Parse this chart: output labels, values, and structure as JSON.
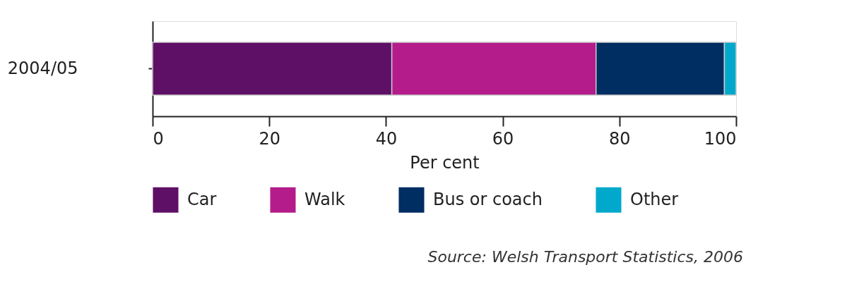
{
  "chart_data": {
    "type": "bar",
    "orientation": "horizontal",
    "stacked": true,
    "categories": [
      "2004/05"
    ],
    "series": [
      {
        "name": "Car",
        "color": "#5e0f66",
        "values": [
          41
        ]
      },
      {
        "name": "Walk",
        "color": "#b31c8a",
        "values": [
          35
        ]
      },
      {
        "name": "Bus or coach",
        "color": "#002d62",
        "values": [
          22
        ]
      },
      {
        "name": "Other",
        "color": "#00a9cc",
        "values": [
          2
        ]
      }
    ],
    "xlim": [
      0,
      100
    ],
    "xticks": [
      0,
      20,
      40,
      60,
      80,
      100
    ],
    "xlabel": "Per cent",
    "legend": "bottom",
    "grid": false,
    "annotations": [
      "Source: Welsh Transport Statistics, 2006"
    ]
  }
}
